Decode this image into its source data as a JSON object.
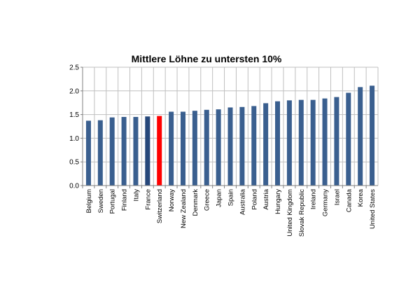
{
  "chart_data": {
    "type": "bar",
    "title": "Mittlere Löhne zu untersten 10%",
    "xlabel": "",
    "ylabel": "",
    "ylim": [
      0,
      2.5
    ],
    "yticks": [
      "0.0",
      "0.5",
      "1.0",
      "1.5",
      "2.0",
      "2.5"
    ],
    "grid": true,
    "categories": [
      "Belgium",
      "Sweden",
      "Portugal",
      "Finland",
      "Italy",
      "France",
      "Switzerland",
      "Norway",
      "New Zealand",
      "Denmark",
      "Greece",
      "Japan",
      "Spain",
      "Australia",
      "Poland",
      "Austria",
      "Hungary",
      "United Kingdom",
      "Slovak Republic",
      "Ireland",
      "Germany",
      "Israel",
      "Canada",
      "Korea",
      "United States"
    ],
    "values": [
      1.37,
      1.38,
      1.44,
      1.45,
      1.45,
      1.46,
      1.47,
      1.56,
      1.56,
      1.58,
      1.6,
      1.61,
      1.65,
      1.66,
      1.68,
      1.74,
      1.78,
      1.8,
      1.81,
      1.81,
      1.84,
      1.87,
      1.96,
      2.08,
      2.11
    ],
    "colors": {
      "bar": "#3a5f8f",
      "france": "#26477a",
      "highlight": "#ff0000",
      "grid": "#bfbfbf",
      "axis": "#808080"
    },
    "highlight": "Switzerland",
    "darker": "France"
  }
}
